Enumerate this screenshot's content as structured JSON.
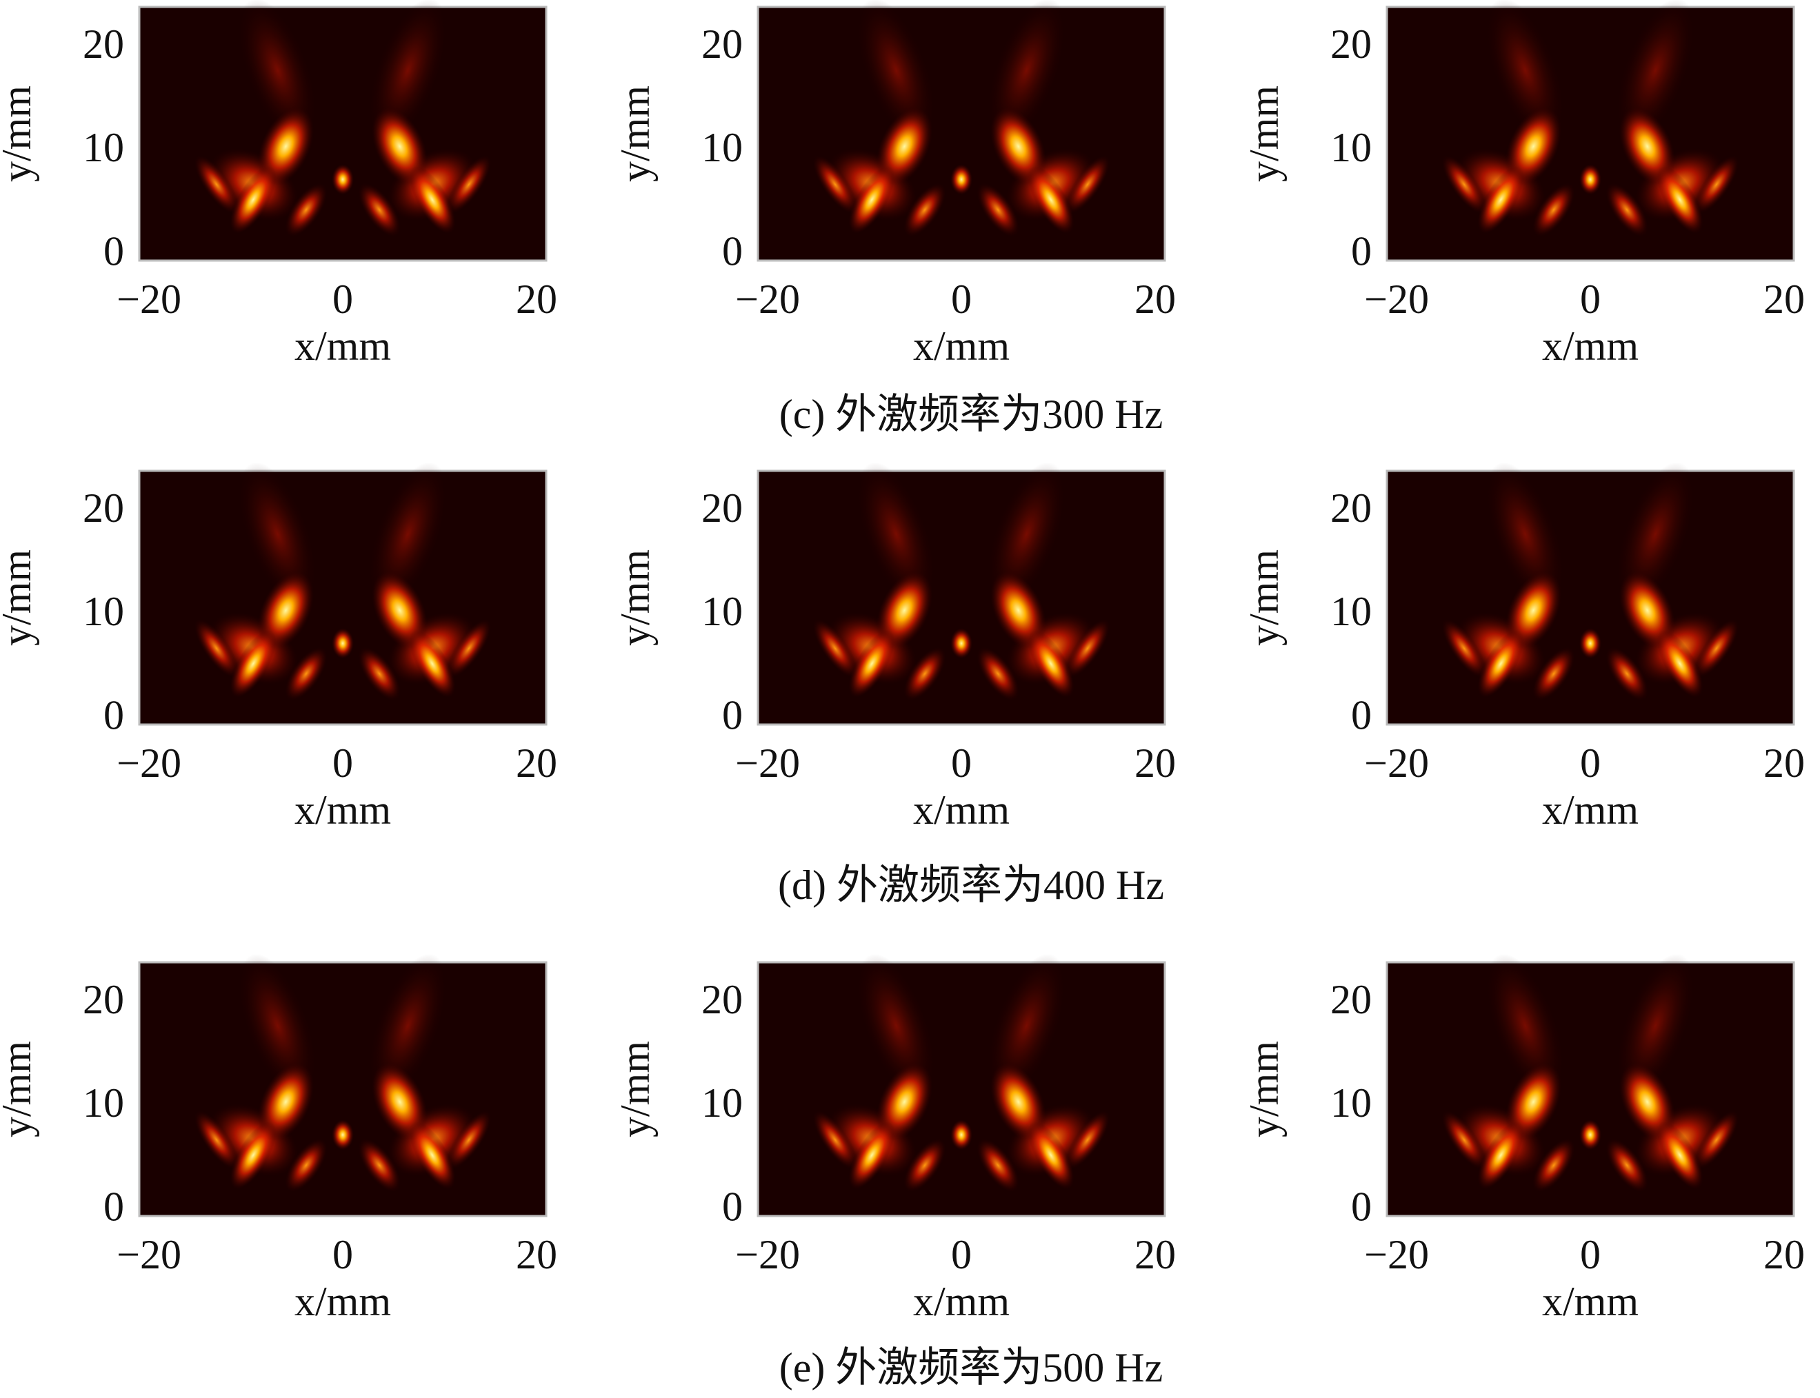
{
  "chart_data": [
    {
      "type": "heatmap",
      "xlabel": "x/mm",
      "ylabel": "y/mm",
      "xlim": [
        -21,
        21
      ],
      "ylim": [
        -0.5,
        24
      ],
      "xticks": [
        {
          "value": -20,
          "label": "−20"
        },
        0,
        20
      ],
      "yticks": [
        0,
        10,
        20
      ]
    },
    {
      "type": "heatmap",
      "xlabel": "x/mm",
      "ylabel": "y/mm",
      "xlim": [
        -21,
        21
      ],
      "ylim": [
        -0.5,
        24
      ],
      "xticks": [
        {
          "value": -20,
          "label": "−20"
        },
        0,
        20
      ],
      "yticks": [
        0,
        10,
        20
      ]
    },
    {
      "type": "heatmap",
      "xlabel": "x/mm",
      "ylabel": "y/mm",
      "xlim": [
        -21,
        21
      ],
      "ylim": [
        -0.5,
        24
      ],
      "xticks": [
        {
          "value": -20,
          "label": "−20"
        },
        0,
        20
      ],
      "yticks": [
        0,
        10,
        20
      ]
    },
    {
      "type": "heatmap",
      "xlabel": "x/mm",
      "ylabel": "y/mm",
      "xlim": [
        -21,
        21
      ],
      "ylim": [
        -0.5,
        24
      ],
      "xticks": [
        {
          "value": -20,
          "label": "−20"
        },
        0,
        20
      ],
      "yticks": [
        0,
        10,
        20
      ]
    },
    {
      "type": "heatmap",
      "xlabel": "x/mm",
      "ylabel": "y/mm",
      "xlim": [
        -21,
        21
      ],
      "ylim": [
        -0.5,
        24
      ],
      "xticks": [
        {
          "value": -20,
          "label": "−20"
        },
        0,
        20
      ],
      "yticks": [
        0,
        10,
        20
      ]
    },
    {
      "type": "heatmap",
      "xlabel": "x/mm",
      "ylabel": "y/mm",
      "xlim": [
        -21,
        21
      ],
      "ylim": [
        -0.5,
        24
      ],
      "xticks": [
        {
          "value": -20,
          "label": "−20"
        },
        0,
        20
      ],
      "yticks": [
        0,
        10,
        20
      ]
    },
    {
      "type": "heatmap",
      "xlabel": "x/mm",
      "ylabel": "y/mm",
      "xlim": [
        -21,
        21
      ],
      "ylim": [
        -0.5,
        24
      ],
      "xticks": [
        {
          "value": -20,
          "label": "−20"
        },
        0,
        20
      ],
      "yticks": [
        0,
        10,
        20
      ]
    },
    {
      "type": "heatmap",
      "xlabel": "x/mm",
      "ylabel": "y/mm",
      "xlim": [
        -21,
        21
      ],
      "ylim": [
        -0.5,
        24
      ],
      "xticks": [
        {
          "value": -20,
          "label": "−20"
        },
        0,
        20
      ],
      "yticks": [
        0,
        10,
        20
      ]
    },
    {
      "type": "heatmap",
      "xlabel": "x/mm",
      "ylabel": "y/mm",
      "xlim": [
        -21,
        21
      ],
      "ylim": [
        -0.5,
        24
      ],
      "xticks": [
        {
          "value": -20,
          "label": "−20"
        },
        0,
        20
      ],
      "yticks": [
        0,
        10,
        20
      ]
    }
  ],
  "captions": [
    "(c) 外激频率为300 Hz",
    "(d) 外激频率为400 Hz",
    "(e) 外激频率为500 Hz"
  ]
}
